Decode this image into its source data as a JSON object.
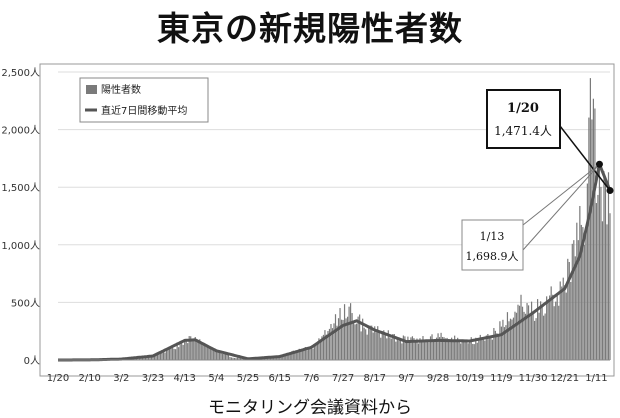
{
  "title": "東京の新規陽性者数",
  "source": "モニタリング会議資料から",
  "chart_data": {
    "type": "bar",
    "ylim": [
      0,
      2500
    ],
    "yticks": [
      0,
      500,
      1000,
      1500,
      2000,
      2500
    ],
    "ytick_labels": [
      "0人",
      "500人",
      "1,000人",
      "1,500人",
      "2,000人",
      "2,500人"
    ],
    "x_start": "2020-01-20",
    "x_end": "2021-01-20",
    "xticks": [
      "1/20",
      "2/10",
      "3/2",
      "3/23",
      "4/13",
      "5/4",
      "5/25",
      "6/15",
      "7/6",
      "7/27",
      "8/17",
      "9/7",
      "9/28",
      "10/19",
      "11/9",
      "11/30",
      "12/21",
      "1/11"
    ],
    "grid": true,
    "legend_position": "top-left",
    "series": [
      {
        "name": "陽性者数",
        "kind": "bar",
        "color": "#7a7a7a",
        "anchors": [
          [
            "2020-01-20",
            0
          ],
          [
            "2020-02-10",
            2
          ],
          [
            "2020-03-02",
            10
          ],
          [
            "2020-03-23",
            40
          ],
          [
            "2020-04-04",
            100
          ],
          [
            "2020-04-13",
            160
          ],
          [
            "2020-04-17",
            206
          ],
          [
            "2020-04-25",
            140
          ],
          [
            "2020-05-04",
            90
          ],
          [
            "2020-05-15",
            20
          ],
          [
            "2020-05-25",
            10
          ],
          [
            "2020-06-15",
            35
          ],
          [
            "2020-07-06",
            110
          ],
          [
            "2020-07-18",
            270
          ],
          [
            "2020-07-31",
            463
          ],
          [
            "2020-08-10",
            280
          ],
          [
            "2020-08-20",
            240
          ],
          [
            "2020-09-07",
            170
          ],
          [
            "2020-09-20",
            180
          ],
          [
            "2020-10-01",
            200
          ],
          [
            "2020-10-19",
            160
          ],
          [
            "2020-11-01",
            200
          ],
          [
            "2020-11-09",
            290
          ],
          [
            "2020-11-20",
            480
          ],
          [
            "2020-11-30",
            420
          ],
          [
            "2020-12-10",
            520
          ],
          [
            "2020-12-21",
            650
          ],
          [
            "2020-12-28",
            900
          ],
          [
            "2020-12-31",
            1337
          ],
          [
            "2021-01-03",
            1000
          ],
          [
            "2021-01-07",
            2447
          ],
          [
            "2021-01-09",
            2268
          ],
          [
            "2021-01-12",
            1433
          ],
          [
            "2021-01-14",
            1502
          ],
          [
            "2021-01-17",
            1592
          ],
          [
            "2021-01-20",
            1274
          ]
        ]
      },
      {
        "name": "直近7日間移動平均",
        "kind": "line",
        "color": "#555555",
        "anchors": [
          [
            "2020-01-20",
            0
          ],
          [
            "2020-02-10",
            1
          ],
          [
            "2020-03-02",
            8
          ],
          [
            "2020-03-23",
            35
          ],
          [
            "2020-04-13",
            170
          ],
          [
            "2020-04-20",
            175
          ],
          [
            "2020-05-04",
            80
          ],
          [
            "2020-05-25",
            10
          ],
          [
            "2020-06-15",
            30
          ],
          [
            "2020-07-06",
            110
          ],
          [
            "2020-07-27",
            300
          ],
          [
            "2020-08-05",
            340
          ],
          [
            "2020-08-17",
            260
          ],
          [
            "2020-09-07",
            160
          ],
          [
            "2020-09-28",
            170
          ],
          [
            "2020-10-19",
            165
          ],
          [
            "2020-11-09",
            220
          ],
          [
            "2020-11-30",
            410
          ],
          [
            "2020-12-21",
            620
          ],
          [
            "2020-12-31",
            900
          ],
          [
            "2021-01-07",
            1300
          ],
          [
            "2021-01-13",
            1698.9
          ],
          [
            "2021-01-20",
            1471.4
          ]
        ]
      }
    ],
    "annotations": [
      {
        "date_label": "1/20",
        "value_label": "1,471.4人",
        "date": "2021-01-20",
        "value": 1471.4,
        "style": "bold"
      },
      {
        "date_label": "1/13",
        "value_label": "1,698.9人",
        "date": "2021-01-13",
        "value": 1698.9,
        "style": "light"
      }
    ]
  }
}
